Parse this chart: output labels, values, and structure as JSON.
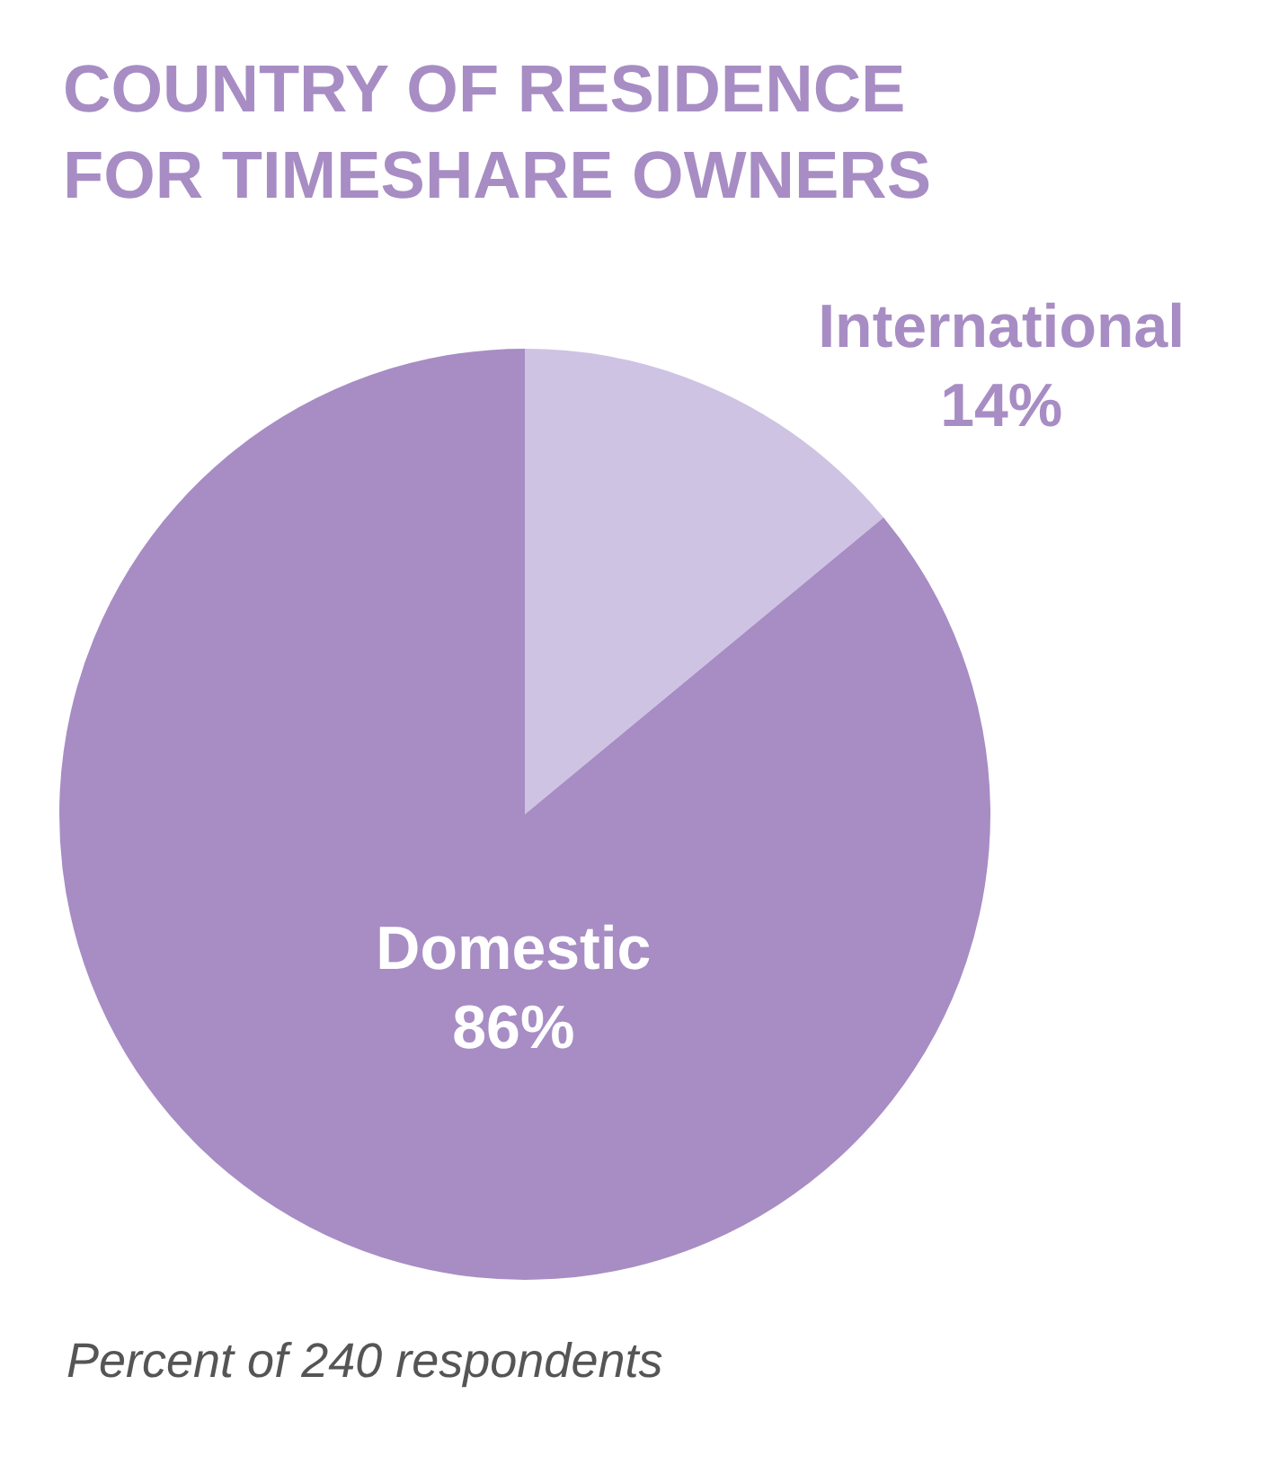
{
  "chart_data": {
    "type": "pie",
    "title": "COUNTRY OF RESIDENCE\nFOR TIMESHARE OWNERS",
    "categories": [
      "International",
      "Domestic"
    ],
    "values": [
      14,
      86
    ],
    "colors": [
      "#cfc3e3",
      "#a78dc4"
    ],
    "value_labels": [
      "14%",
      "86%"
    ],
    "legend": false,
    "annotations": [
      "Percent of 240 respondents"
    ]
  }
}
